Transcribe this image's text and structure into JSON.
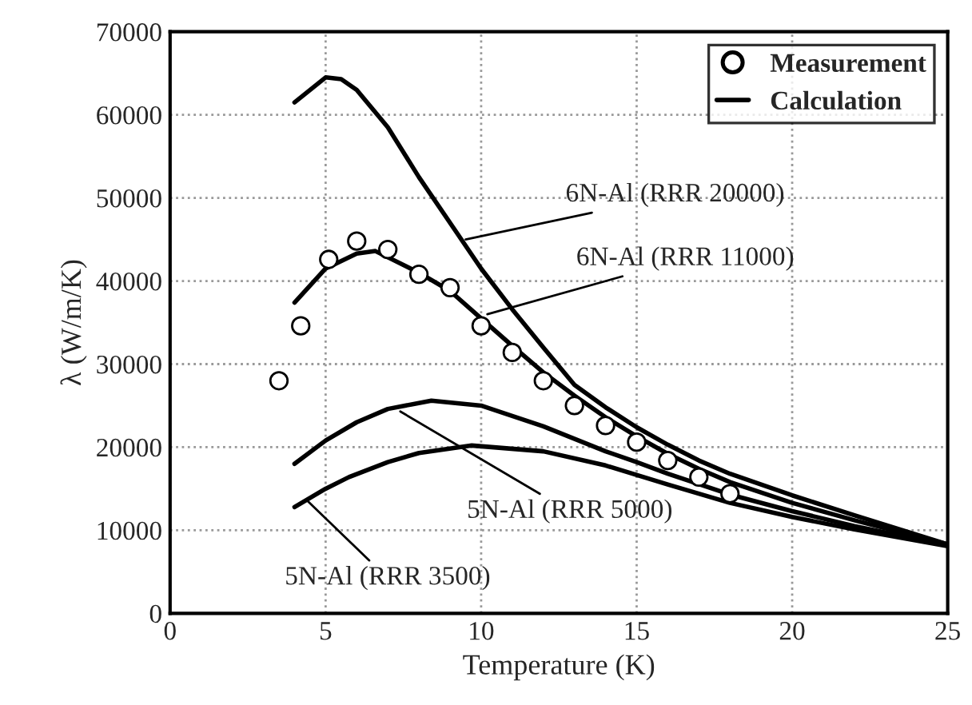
{
  "chart_data": {
    "type": "line",
    "xlabel": "Temperature (K)",
    "ylabel": "λ (W/m/K)",
    "xlim": [
      0,
      25
    ],
    "xticks": [
      0,
      5,
      10,
      15,
      20,
      25
    ],
    "ylim": [
      0,
      70000
    ],
    "yticks": [
      0,
      10000,
      20000,
      30000,
      40000,
      50000,
      60000,
      70000
    ],
    "grid": true,
    "legend": "top right",
    "series": [
      {
        "name": "Measurement",
        "type": "scatter",
        "marker": "circle",
        "color": "#000000",
        "x": [
          3.5,
          4.2,
          5.1,
          6.0,
          7.0,
          8.0,
          9.0,
          10.0,
          11.0,
          12.0,
          13.0,
          14.0,
          15.0,
          16.0,
          17.0,
          18.0
        ],
        "values": [
          28000,
          34600,
          42600,
          44800,
          43800,
          40800,
          39200,
          34600,
          31400,
          28000,
          25000,
          22600,
          20600,
          18400,
          16400,
          14400
        ]
      },
      {
        "name": "Calculation",
        "color": "#000000",
        "line_style": "solid",
        "x": [
          4,
          5,
          5.5,
          6,
          7,
          8,
          9,
          10,
          11,
          12,
          13,
          14,
          15,
          16,
          17,
          18,
          20,
          22,
          25
        ],
        "values": [
          61500,
          64500,
          64300,
          63000,
          58500,
          52500,
          47000,
          41500,
          36600,
          32000,
          27500,
          24800,
          22400,
          20300,
          18400,
          16800,
          14200,
          11800,
          8300
        ]
      },
      {
        "color": "#000000",
        "line_style": "solid",
        "x": [
          4,
          5,
          6,
          6.6,
          8,
          9,
          10,
          11,
          12,
          13,
          14,
          15,
          16,
          17,
          18,
          20,
          22,
          25
        ],
        "values": [
          37400,
          41500,
          43300,
          43600,
          41000,
          38800,
          35500,
          32200,
          29000,
          26200,
          23600,
          21300,
          19200,
          17400,
          15800,
          13300,
          11200,
          8300
        ]
      },
      {
        "color": "#000000",
        "line_style": "solid",
        "x": [
          4,
          5,
          6,
          7,
          8.4,
          10,
          12,
          14,
          15,
          16,
          18,
          20,
          22,
          25
        ],
        "values": [
          18000,
          20800,
          23000,
          24600,
          25600,
          25000,
          22500,
          19500,
          18200,
          16800,
          14300,
          12300,
          10500,
          8200
        ]
      },
      {
        "color": "#000000",
        "line_style": "solid",
        "x": [
          4,
          5,
          5.75,
          7,
          8,
          9.7,
          12,
          14,
          16,
          18,
          20,
          22,
          25
        ],
        "values": [
          12800,
          15000,
          16400,
          18200,
          19300,
          20200,
          19500,
          17800,
          15500,
          13300,
          11600,
          10100,
          8100
        ]
      }
    ],
    "annotations": [
      {
        "text": "6N-Al (RRR 20000)",
        "x": 9.5,
        "y": 45000
      },
      {
        "text": "6N-Al (RRR 11000)",
        "x": 10.2,
        "y": 36000
      },
      {
        "text": "5N-Al (RRR 5000)",
        "x": 7.4,
        "y": 24300
      },
      {
        "text": "5N-Al (RRR 3500)",
        "x": 4.4,
        "y": 13600
      }
    ]
  }
}
